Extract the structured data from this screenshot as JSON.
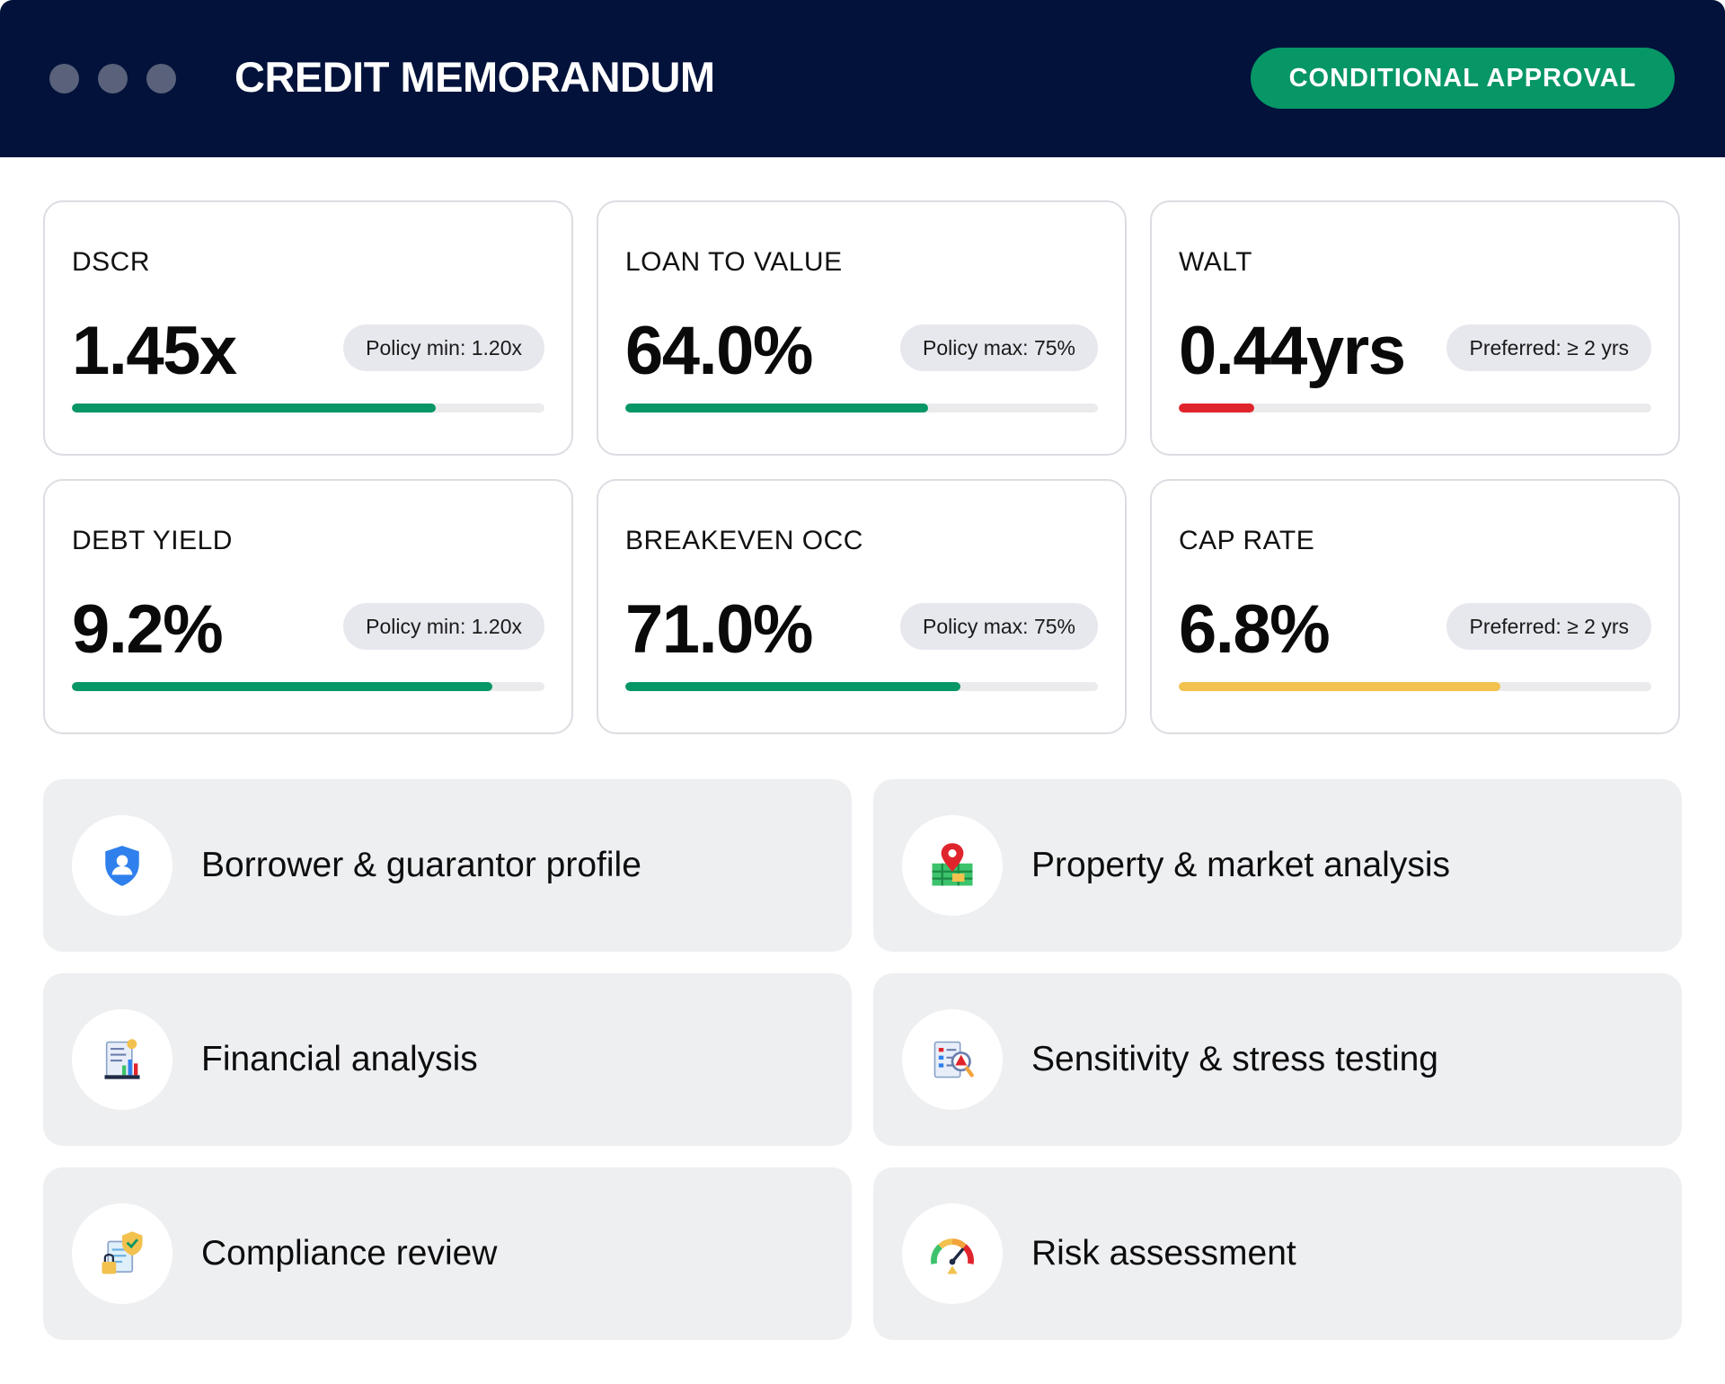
{
  "header": {
    "title": "CREDIT MEMORANDUM",
    "status_badge": "CONDITIONAL APPROVAL",
    "window_controls": [
      "window-dot",
      "window-dot",
      "window-dot"
    ]
  },
  "metrics": [
    {
      "label": "DSCR",
      "value": "1.45x",
      "policy": "Policy min: 1.20x",
      "bar_fraction": 0.77,
      "bar_color": "#079666"
    },
    {
      "label": "LOAN TO VALUE",
      "value": "64.0%",
      "policy": "Policy max: 75%",
      "bar_fraction": 0.64,
      "bar_color": "#079666"
    },
    {
      "label": "WALT",
      "value": "0.44yrs",
      "policy": "Preferred: ≥ 2 yrs",
      "bar_fraction": 0.16,
      "bar_color": "#e0242c"
    },
    {
      "label": "DEBT YIELD",
      "value": "9.2%",
      "policy": "Policy min: 1.20x",
      "bar_fraction": 0.89,
      "bar_color": "#079666"
    },
    {
      "label": "BREAKEVEN OCC",
      "value": "71.0%",
      "policy": "Policy max: 75%",
      "bar_fraction": 0.71,
      "bar_color": "#079666"
    },
    {
      "label": "CAP RATE",
      "value": "6.8%",
      "policy": "Preferred: ≥ 2 yrs",
      "bar_fraction": 0.68,
      "bar_color": "#f2c14e"
    }
  ],
  "sections": [
    {
      "label": "Borrower & guarantor profile",
      "icon": "user-shield-icon"
    },
    {
      "label": "Property & market analysis",
      "icon": "map-pin-icon"
    },
    {
      "label": "Financial analysis",
      "icon": "financial-report-icon"
    },
    {
      "label": "Sensitivity & stress testing",
      "icon": "stress-test-report-icon"
    },
    {
      "label": "Compliance review",
      "icon": "compliance-lock-icon"
    },
    {
      "label": "Risk assessment",
      "icon": "risk-gauge-icon"
    }
  ],
  "colors": {
    "header_bg": "#02123b",
    "approval_green": "#079666",
    "bar_green": "#079666",
    "bar_red": "#e0242c",
    "bar_yellow": "#f2c14e",
    "section_bg": "#eeeff1"
  }
}
